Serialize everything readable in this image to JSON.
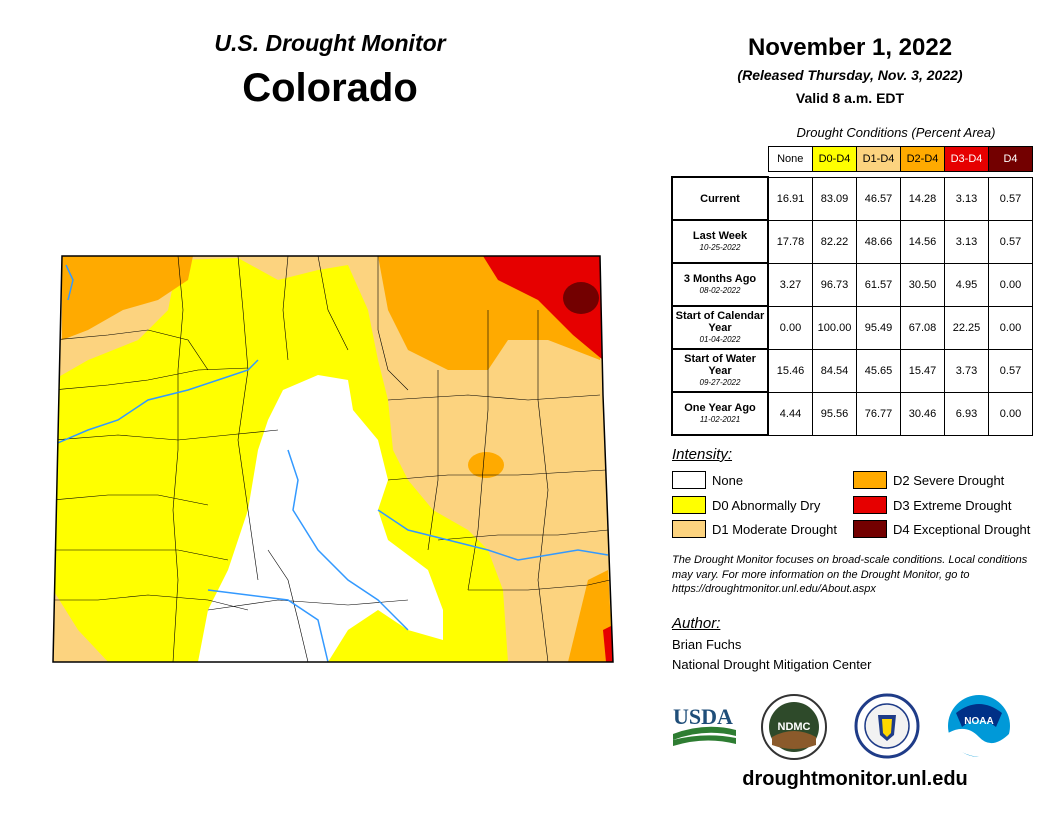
{
  "header": {
    "title": "U.S. Drought Monitor",
    "state": "Colorado",
    "date": "November 1, 2022",
    "released": "(Released Thursday, Nov. 3, 2022)",
    "valid": "Valid 8 a.m. EDT"
  },
  "table": {
    "caption": "Drought Conditions (Percent Area)",
    "columns": [
      "None",
      "D0-D4",
      "D1-D4",
      "D2-D4",
      "D3-D4",
      "D4"
    ],
    "column_colors": [
      "#ffffff",
      "#ffff00",
      "#fcd37f",
      "#ffaa00",
      "#e60000",
      "#730000"
    ],
    "rows": [
      {
        "label": "Current",
        "sub": "",
        "values": [
          "16.91",
          "83.09",
          "46.57",
          "14.28",
          "3.13",
          "0.57"
        ]
      },
      {
        "label": "Last Week",
        "sub": "10-25-2022",
        "values": [
          "17.78",
          "82.22",
          "48.66",
          "14.56",
          "3.13",
          "0.57"
        ]
      },
      {
        "label": "3 Months Ago",
        "sub": "08-02-2022",
        "values": [
          "3.27",
          "96.73",
          "61.57",
          "30.50",
          "4.95",
          "0.00"
        ]
      },
      {
        "label": "Start of Calendar Year",
        "sub": "01-04-2022",
        "values": [
          "0.00",
          "100.00",
          "95.49",
          "67.08",
          "22.25",
          "0.00"
        ]
      },
      {
        "label": "Start of Water Year",
        "sub": "09-27-2022",
        "values": [
          "15.46",
          "84.54",
          "45.65",
          "15.47",
          "3.73",
          "0.57"
        ]
      },
      {
        "label": "One Year Ago",
        "sub": "11-02-2021",
        "values": [
          "4.44",
          "95.56",
          "76.77",
          "30.46",
          "6.93",
          "0.00"
        ]
      }
    ]
  },
  "legend": {
    "title": "Intensity:",
    "items": [
      {
        "label": "None",
        "color": "#ffffff"
      },
      {
        "label": "D0 Abnormally Dry",
        "color": "#ffff00"
      },
      {
        "label": "D1 Moderate Drought",
        "color": "#fcd37f"
      },
      {
        "label": "D2 Severe Drought",
        "color": "#ffaa00"
      },
      {
        "label": "D3 Extreme Drought",
        "color": "#e60000"
      },
      {
        "label": "D4 Exceptional Drought",
        "color": "#730000"
      }
    ]
  },
  "note": "The Drought Monitor focuses on broad-scale conditions. Local conditions may vary. For more information on the Drought Monitor, go to https://droughtmonitor.unl.edu/About.aspx",
  "author": {
    "title": "Author:",
    "name": "Brian Fuchs",
    "org": "National Drought Mitigation Center"
  },
  "logos": {
    "usda": "USDA",
    "ndmc": "NDMC",
    "noaa": "NOAA"
  },
  "footer": {
    "url": "droughtmonitor.unl.edu"
  },
  "map": {
    "colors": {
      "none": "#ffffff",
      "d0": "#ffff00",
      "d1": "#fcd37f",
      "d2": "#ffaa00",
      "d3": "#e60000",
      "d4": "#730000",
      "water": "#3399ff",
      "county": "#000000"
    }
  }
}
